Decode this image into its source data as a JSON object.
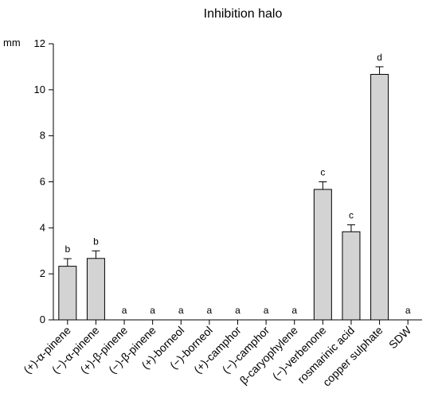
{
  "chart_data": {
    "type": "bar",
    "title": "Inhibition halo",
    "ylabel": "mm",
    "xlabel": "",
    "ylim": [
      0,
      12
    ],
    "yticks": [
      "0",
      "2",
      "4",
      "6",
      "8",
      "10",
      "12"
    ],
    "grid": false,
    "categories": [
      "(+)-α-pinene",
      "(−)-α-pinene",
      "(+)-β-pinene",
      "(−)-β-pinene",
      "(+)-borneol",
      "(−)-borneol",
      "(+)-camphor",
      "(−)-camphor",
      "β-caryophylene",
      "(−)-verbenone",
      "rosmarinic acid",
      "copper sulphate",
      "SDW"
    ],
    "values": [
      2.33,
      2.67,
      0,
      0,
      0,
      0,
      0,
      0,
      0,
      5.67,
      3.83,
      10.67,
      0
    ],
    "errors": [
      0.33,
      0.33,
      0,
      0,
      0,
      0,
      0,
      0,
      0,
      0.33,
      0.3,
      0.33,
      0
    ],
    "significance_letters": [
      "b",
      "b",
      "a",
      "a",
      "a",
      "a",
      "a",
      "a",
      "a",
      "c",
      "c",
      "d",
      "a"
    ],
    "colors": {
      "bar_fill": "#d3d3d3",
      "bar_stroke": "#000000",
      "axis": "#000000"
    }
  }
}
